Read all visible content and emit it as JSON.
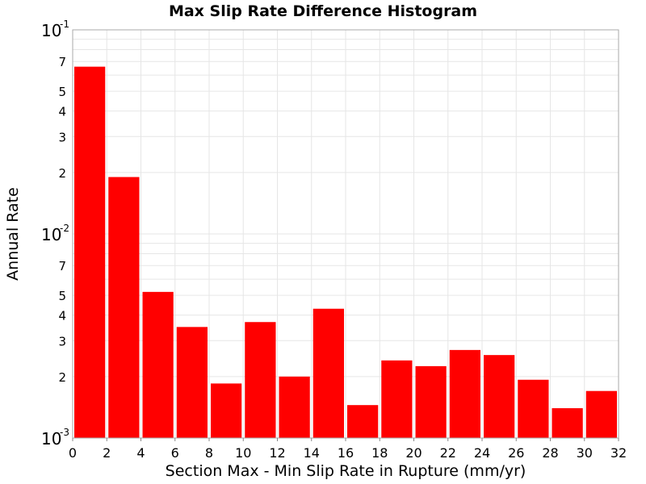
{
  "chart_data": {
    "type": "bar",
    "title": "Max Slip Rate Difference Histogram",
    "xlabel": "Section Max - Min Slip Rate in Rupture (mm/yr)",
    "ylabel": "Annual Rate",
    "bin_width": 2,
    "x": [
      1,
      3,
      5,
      7,
      9,
      11,
      13,
      15,
      17,
      19,
      21,
      23,
      25,
      27,
      29,
      31
    ],
    "values": [
      0.066,
      0.019,
      0.0052,
      0.0035,
      0.00185,
      0.0037,
      0.002,
      0.0043,
      0.00145,
      0.0024,
      0.00225,
      0.0027,
      0.00255,
      0.00193,
      0.0014,
      0.0017
    ],
    "xlim": [
      0,
      32
    ],
    "ylim": [
      0.001,
      0.1
    ],
    "yscale": "log",
    "xticks": [
      "0",
      "2",
      "4",
      "6",
      "8",
      "10",
      "12",
      "14",
      "16",
      "18",
      "20",
      "22",
      "24",
      "26",
      "28",
      "30",
      "32"
    ],
    "y_decade_ticks": [
      {
        "base": "10",
        "exp": "-3",
        "value": 0.001
      },
      {
        "base": "10",
        "exp": "-2",
        "value": 0.01
      },
      {
        "base": "10",
        "exp": "-1",
        "value": 0.1
      }
    ],
    "y_minor_labeled_ticks": [
      "2",
      "3",
      "4",
      "5",
      "7"
    ],
    "grid": true,
    "colors": {
      "bar": "#ff0000",
      "grid": "#e6e6e6",
      "frame": "#aaaaaa"
    }
  }
}
